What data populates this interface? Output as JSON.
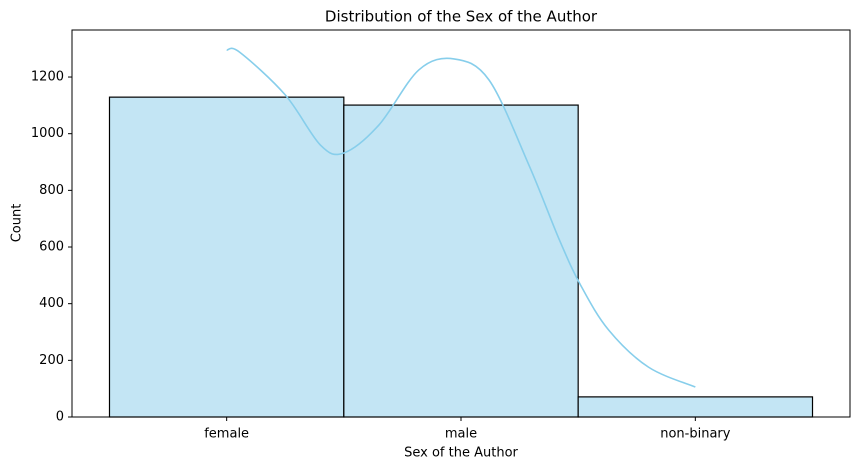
{
  "chart_data": {
    "type": "bar",
    "title": "Distribution of the Sex of the Author",
    "xlabel": "Sex of the Author",
    "ylabel": "Count",
    "categories": [
      "female",
      "male",
      "non-binary"
    ],
    "values": [
      1129,
      1101,
      71
    ],
    "color": "#c3e5f4",
    "edgecolor": "#000000",
    "ylim": [
      0,
      1366
    ],
    "yticks": [
      0,
      200,
      400,
      600,
      800,
      1000,
      1200
    ],
    "xlim": [
      -0.66,
      2.66
    ],
    "kde": {
      "color": "#87ceeb",
      "x": [
        0,
        0.055,
        0.25,
        0.4,
        0.5,
        0.65,
        0.82,
        0.97,
        1.12,
        1.29,
        1.42,
        1.51,
        1.63,
        1.8,
        2
      ],
      "values": [
        1295,
        1288,
        1137,
        960,
        932,
        1031,
        1225,
        1264,
        1189,
        889,
        625,
        466,
        307,
        176,
        106
      ]
    }
  }
}
